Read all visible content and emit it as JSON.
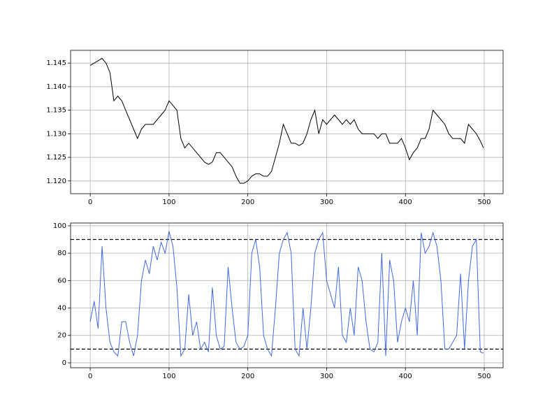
{
  "chart_data": [
    {
      "type": "line",
      "color": "#000000",
      "grid": true,
      "x": [
        0,
        5,
        10,
        15,
        20,
        25,
        30,
        35,
        40,
        45,
        50,
        55,
        60,
        65,
        70,
        75,
        80,
        85,
        90,
        95,
        100,
        105,
        110,
        115,
        120,
        125,
        130,
        135,
        140,
        145,
        150,
        155,
        160,
        165,
        170,
        175,
        180,
        185,
        190,
        195,
        200,
        205,
        210,
        215,
        220,
        225,
        230,
        235,
        240,
        245,
        250,
        255,
        260,
        265,
        270,
        275,
        280,
        285,
        290,
        295,
        300,
        305,
        310,
        315,
        320,
        325,
        330,
        335,
        340,
        345,
        350,
        355,
        360,
        365,
        370,
        375,
        380,
        385,
        390,
        395,
        400,
        405,
        410,
        415,
        420,
        425,
        430,
        435,
        440,
        445,
        450,
        455,
        460,
        465,
        470,
        475,
        480,
        485,
        490,
        495,
        499
      ],
      "values": [
        1.1445,
        1.145,
        1.1455,
        1.146,
        1.145,
        1.143,
        1.137,
        1.138,
        1.137,
        1.135,
        1.133,
        1.131,
        1.129,
        1.131,
        1.132,
        1.132,
        1.132,
        1.133,
        1.134,
        1.135,
        1.137,
        1.136,
        1.135,
        1.129,
        1.127,
        1.128,
        1.127,
        1.126,
        1.125,
        1.124,
        1.1235,
        1.124,
        1.126,
        1.126,
        1.125,
        1.124,
        1.123,
        1.121,
        1.1195,
        1.1195,
        1.12,
        1.121,
        1.1215,
        1.1215,
        1.121,
        1.121,
        1.122,
        1.125,
        1.128,
        1.132,
        1.13,
        1.128,
        1.128,
        1.1275,
        1.128,
        1.13,
        1.133,
        1.135,
        1.13,
        1.133,
        1.132,
        1.133,
        1.134,
        1.133,
        1.132,
        1.133,
        1.132,
        1.133,
        1.131,
        1.13,
        1.13,
        1.13,
        1.13,
        1.129,
        1.13,
        1.13,
        1.128,
        1.128,
        1.128,
        1.129,
        1.127,
        1.1245,
        1.126,
        1.127,
        1.129,
        1.129,
        1.131,
        1.135,
        1.134,
        1.133,
        1.132,
        1.13,
        1.129,
        1.129,
        1.129,
        1.128,
        1.132,
        1.131,
        1.13,
        1.1285,
        1.127
      ],
      "xlim": [
        -24.95,
        523.95
      ],
      "ylim": [
        1.1173,
        1.1477
      ],
      "xticks": [
        0,
        100,
        200,
        300,
        400,
        500
      ],
      "yticks": [
        {
          "value": 1.12,
          "label": "1.120"
        },
        1.125,
        {
          "value": 1.13,
          "label": "1.130"
        },
        1.135,
        {
          "value": 1.14,
          "label": "1.140"
        },
        1.145
      ]
    },
    {
      "type": "line",
      "color": "#4169e1",
      "grid": true,
      "x": [
        0,
        5,
        10,
        15,
        20,
        25,
        30,
        35,
        40,
        45,
        50,
        55,
        60,
        65,
        70,
        75,
        80,
        85,
        90,
        95,
        100,
        105,
        110,
        115,
        120,
        125,
        130,
        135,
        140,
        145,
        150,
        155,
        160,
        165,
        170,
        175,
        180,
        185,
        190,
        195,
        200,
        205,
        210,
        215,
        220,
        225,
        230,
        235,
        240,
        245,
        250,
        255,
        260,
        265,
        270,
        275,
        280,
        285,
        290,
        295,
        300,
        305,
        310,
        315,
        320,
        325,
        330,
        335,
        340,
        345,
        350,
        355,
        360,
        365,
        370,
        375,
        380,
        385,
        390,
        395,
        400,
        405,
        410,
        415,
        420,
        425,
        430,
        435,
        440,
        445,
        450,
        455,
        460,
        465,
        470,
        475,
        480,
        485,
        490,
        495,
        499
      ],
      "values": [
        30,
        45,
        25,
        85,
        40,
        15,
        8,
        5,
        30,
        30,
        15,
        5,
        20,
        60,
        75,
        65,
        85,
        75,
        88,
        80,
        96,
        85,
        55,
        5,
        10,
        50,
        20,
        30,
        10,
        15,
        8,
        55,
        20,
        10,
        12,
        70,
        40,
        15,
        10,
        12,
        20,
        80,
        90,
        70,
        20,
        10,
        5,
        40,
        80,
        90,
        95,
        80,
        10,
        5,
        40,
        10,
        40,
        80,
        90,
        95,
        60,
        50,
        40,
        70,
        20,
        15,
        40,
        20,
        70,
        60,
        30,
        10,
        8,
        15,
        80,
        5,
        75,
        60,
        15,
        30,
        40,
        30,
        60,
        20,
        95,
        80,
        85,
        95,
        85,
        60,
        10,
        10,
        15,
        20,
        65,
        10,
        60,
        85,
        90,
        8,
        7
      ],
      "hlines": [
        10,
        90
      ],
      "xlim": [
        -24.95,
        523.95
      ],
      "ylim": [
        -3.6,
        102
      ],
      "xticks": [
        0,
        100,
        200,
        300,
        400,
        500
      ],
      "yticks": [
        0,
        20,
        40,
        60,
        80,
        100
      ]
    }
  ]
}
